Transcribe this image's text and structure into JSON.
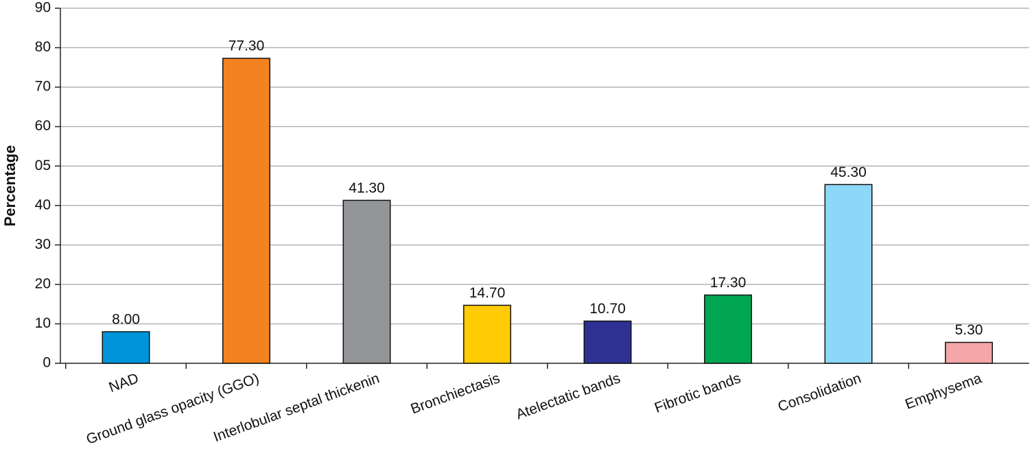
{
  "chart_data": {
    "type": "bar",
    "y_label": "Percentage",
    "categories": [
      "NAD",
      "Ground glass opacity (GGO)",
      "Interlobular septal thickenin",
      "Bronchiectasis",
      "Atelectatic bands",
      "Fibrotic bands",
      "Consolidation",
      "Emphysema"
    ],
    "values": [
      8.0,
      77.3,
      41.3,
      14.7,
      10.7,
      17.3,
      45.3,
      5.3
    ],
    "value_labels": [
      "8.00",
      "77.30",
      "41.30",
      "14.70",
      "10.70",
      "17.30",
      "45.30",
      "5.30"
    ],
    "colors": [
      "#0095da",
      "#f58220",
      "#939598",
      "#ffcc05",
      "#2e3192",
      "#00a651",
      "#8dd8f8",
      "#f4a6a8"
    ],
    "ylim": [
      0,
      90
    ],
    "yticks": [
      0,
      10,
      20,
      30,
      40,
      {
        "value": 50,
        "label": "05"
      },
      60,
      70,
      80,
      90
    ],
    "grid": true
  }
}
